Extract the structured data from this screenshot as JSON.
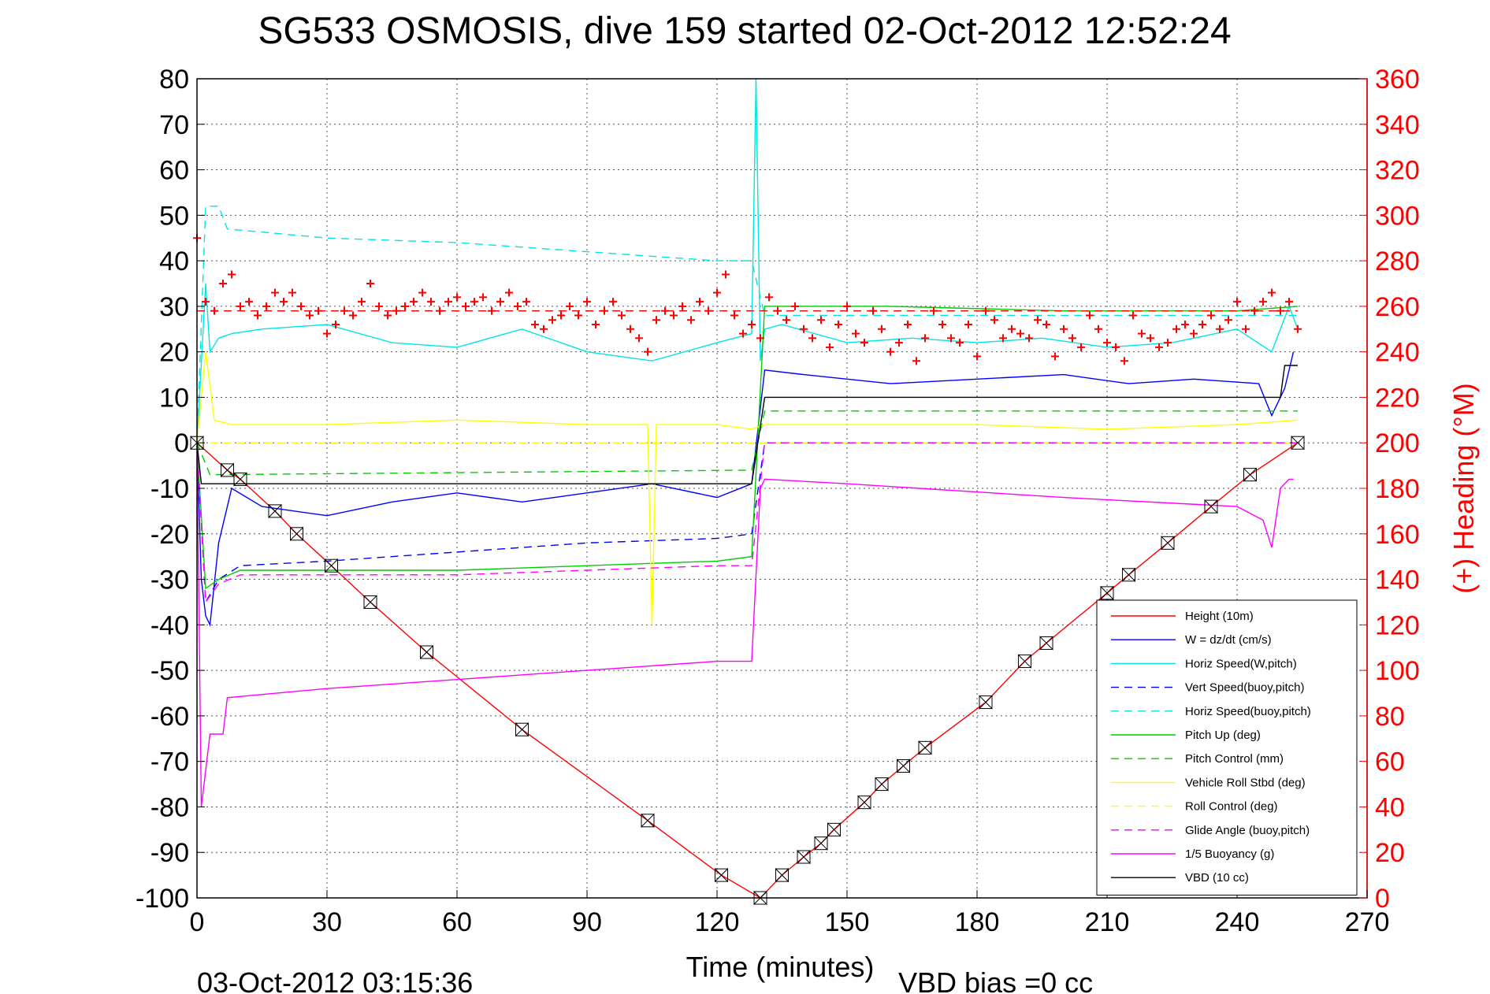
{
  "chart_data": {
    "type": "line",
    "title": "SG533 OSMOSIS, dive 159 started 02-Oct-2012 12:52:24",
    "xlabel": "Time (minutes)",
    "ylabel": "",
    "ylabel_right": "(+) Heading (°M)",
    "footer_date": "03-Oct-2012 03:15:36",
    "footer_bias": "VBD bias =0 cc",
    "xlim": [
      0,
      270
    ],
    "ylim": [
      -100,
      80
    ],
    "ylim_right": [
      0,
      360
    ],
    "x_ticks": [
      "0",
      "30",
      "60",
      "90",
      "120",
      "150",
      "180",
      "210",
      "240",
      "270"
    ],
    "y_ticks": [
      "80",
      "70",
      "60",
      "50",
      "40",
      "30",
      "20",
      "10",
      "0",
      "-10",
      "-20",
      "-30",
      "-40",
      "-50",
      "-60",
      "-70",
      "-80",
      "-90",
      "-100"
    ],
    "y_ticks_right": [
      "360",
      "340",
      "320",
      "300",
      "280",
      "260",
      "240",
      "220",
      "200",
      "180",
      "160",
      "140",
      "120",
      "100",
      "80",
      "60",
      "40",
      "20",
      "0"
    ],
    "grid": true,
    "legend_position": "bottom-right",
    "series": [
      {
        "name": "Height (10m)",
        "color": "#ff0000",
        "style": "solid",
        "x": [
          0,
          7,
          10,
          18,
          23,
          31,
          40,
          53,
          75,
          104,
          121,
          130,
          135,
          140,
          144,
          147,
          154,
          158,
          163,
          168,
          182,
          191,
          196,
          210,
          215,
          224,
          234,
          243,
          254
        ],
        "y": [
          0,
          -6,
          -8,
          -15,
          -20,
          -27,
          -35,
          -46,
          -63,
          -83,
          -95,
          -100,
          -95,
          -91,
          -88,
          -85,
          -79,
          -75,
          -71,
          -67,
          -57,
          -48,
          -44,
          -33,
          -29,
          -22,
          -14,
          -7,
          0
        ]
      },
      {
        "name": "W = dz/dt (cm/s)",
        "color": "#0000ff",
        "style": "solid",
        "x": [
          0,
          1,
          2,
          3,
          5,
          8,
          15,
          30,
          45,
          60,
          75,
          90,
          105,
          120,
          128,
          131,
          140,
          160,
          180,
          200,
          215,
          230,
          245,
          248,
          251,
          253
        ],
        "y": [
          0,
          -30,
          -38,
          -40,
          -22,
          -10,
          -14,
          -16,
          -13,
          -11,
          -13,
          -11,
          -9,
          -12,
          -9,
          16,
          15,
          13,
          14,
          15,
          13,
          14,
          13,
          6,
          12,
          20
        ]
      },
      {
        "name": "Horiz Speed(W,pitch)",
        "color": "#00e5e5",
        "style": "solid",
        "x": [
          0,
          2,
          3,
          5,
          8,
          15,
          30,
          45,
          60,
          75,
          90,
          105,
          120,
          128,
          129,
          130,
          131,
          135,
          150,
          165,
          180,
          195,
          210,
          225,
          240,
          248,
          252,
          254
        ],
        "y": [
          0,
          35,
          20,
          23,
          24,
          25,
          26,
          22,
          21,
          25,
          20,
          18,
          22,
          24,
          80,
          18,
          25,
          26,
          22,
          23,
          22,
          23,
          21,
          22,
          25,
          20,
          30,
          25
        ]
      },
      {
        "name": "Vert Speed(buoy,pitch)",
        "color": "#0000ff",
        "style": "dashed",
        "x": [
          0,
          2,
          5,
          10,
          30,
          60,
          90,
          120,
          128,
          131,
          254
        ],
        "y": [
          0,
          -35,
          -30,
          -27,
          -26,
          -24,
          -22,
          -21,
          -20,
          0,
          0
        ]
      },
      {
        "name": "Horiz Speed(buoy,pitch)",
        "color": "#00e5e5",
        "style": "dashed",
        "x": [
          0,
          2,
          5,
          7,
          30,
          60,
          90,
          120,
          128,
          131,
          254
        ],
        "y": [
          0,
          52,
          52,
          47,
          45,
          44,
          42,
          40,
          40,
          28,
          28
        ]
      },
      {
        "name": "Pitch Up (deg)",
        "color": "#00cc00",
        "style": "solid",
        "x": [
          0,
          2,
          5,
          10,
          30,
          60,
          90,
          120,
          128,
          131,
          160,
          200,
          240,
          254
        ],
        "y": [
          0,
          -32,
          -30,
          -28,
          -28,
          -28,
          -27,
          -26,
          -25,
          30,
          30,
          29,
          29,
          30
        ]
      },
      {
        "name": "Pitch Control (mm)",
        "color": "#00cc00",
        "style": "dashed",
        "x": [
          0,
          3,
          128,
          131,
          254
        ],
        "y": [
          0,
          -7,
          -6,
          7,
          7
        ]
      },
      {
        "name": "Vehicle Roll Stbd (deg)",
        "color": "#ffff00",
        "style": "solid",
        "x": [
          0,
          2,
          4,
          8,
          30,
          60,
          90,
          104,
          105,
          106,
          120,
          128,
          131,
          150,
          180,
          210,
          240,
          254
        ],
        "y": [
          0,
          20,
          5,
          4,
          4,
          5,
          4,
          4,
          -40,
          4,
          4,
          3,
          4,
          4,
          4,
          3,
          4,
          5
        ]
      },
      {
        "name": "Roll Control (deg)",
        "color": "#ffff00",
        "style": "dashed",
        "x": [
          0,
          254
        ],
        "y": [
          0,
          0
        ]
      },
      {
        "name": "Glide Angle (buoy,pitch)",
        "color": "#ff00ff",
        "style": "dashed",
        "x": [
          0,
          2,
          5,
          10,
          30,
          60,
          90,
          120,
          128,
          131,
          254
        ],
        "y": [
          0,
          -35,
          -31,
          -29,
          -29,
          -29,
          -28,
          -27,
          -27,
          0,
          0
        ]
      },
      {
        "name": "1/5 Buoyancy (g)",
        "color": "#ff00ff",
        "style": "solid",
        "x": [
          0,
          1,
          3,
          6,
          7,
          30,
          60,
          90,
          120,
          128,
          130,
          131,
          150,
          200,
          240,
          246,
          248,
          250,
          252,
          253
        ],
        "y": [
          0,
          -80,
          -64,
          -64,
          -56,
          -54,
          -52,
          -50,
          -48,
          -48,
          -10,
          -8,
          -9,
          -12,
          -14,
          -17,
          -23,
          -10,
          -8,
          -8
        ]
      },
      {
        "name": "VBD (10 cc)",
        "color": "#000000",
        "style": "solid",
        "x": [
          0,
          1,
          3,
          128,
          131,
          250,
          251,
          254
        ],
        "y": [
          0,
          -9,
          -9,
          -9,
          10,
          10,
          17,
          17
        ]
      }
    ],
    "heading_points": {
      "color": "#ff0000",
      "x": [
        0,
        2,
        4,
        6,
        8,
        10,
        12,
        14,
        16,
        18,
        20,
        22,
        24,
        26,
        28,
        30,
        32,
        34,
        36,
        38,
        40,
        42,
        44,
        46,
        48,
        50,
        52,
        54,
        56,
        58,
        60,
        62,
        64,
        66,
        68,
        70,
        72,
        74,
        76,
        78,
        80,
        82,
        84,
        86,
        88,
        90,
        92,
        94,
        96,
        98,
        100,
        102,
        104,
        106,
        108,
        110,
        112,
        114,
        116,
        118,
        120,
        122,
        124,
        126,
        128,
        130,
        132,
        134,
        136,
        138,
        140,
        142,
        144,
        146,
        148,
        150,
        152,
        154,
        156,
        158,
        160,
        162,
        164,
        166,
        168,
        170,
        172,
        174,
        176,
        178,
        180,
        182,
        184,
        186,
        188,
        190,
        192,
        194,
        196,
        198,
        200,
        202,
        204,
        206,
        208,
        210,
        212,
        214,
        216,
        218,
        220,
        222,
        224,
        226,
        228,
        230,
        232,
        234,
        236,
        238,
        240,
        242,
        244,
        246,
        248,
        250,
        252,
        254
      ],
      "y": [
        290,
        262,
        258,
        270,
        274,
        260,
        262,
        256,
        260,
        266,
        262,
        266,
        260,
        256,
        258,
        248,
        252,
        258,
        256,
        262,
        270,
        260,
        256,
        258,
        260,
        262,
        266,
        262,
        258,
        262,
        264,
        260,
        262,
        264,
        258,
        262,
        266,
        260,
        262,
        252,
        250,
        254,
        256,
        260,
        256,
        262,
        252,
        258,
        262,
        256,
        250,
        246,
        240,
        254,
        258,
        256,
        260,
        254,
        262,
        258,
        266,
        274,
        256,
        248,
        252,
        246,
        264,
        258,
        254,
        260,
        250,
        246,
        254,
        242,
        252,
        260,
        248,
        244,
        258,
        250,
        240,
        244,
        252,
        236,
        246,
        258,
        252,
        246,
        244,
        252,
        238,
        258,
        254,
        246,
        250,
        248,
        246,
        254,
        252,
        238,
        250,
        246,
        242,
        256,
        250,
        244,
        242,
        236,
        256,
        248,
        246,
        242,
        244,
        250,
        252,
        248,
        252,
        256,
        250,
        254,
        262,
        250,
        258,
        262,
        266,
        258,
        262,
        250
      ]
    },
    "heading_mean": {
      "color": "#ff0000",
      "style": "dashed",
      "value": 258
    },
    "marker_points": {
      "x": [
        0,
        7,
        10,
        18,
        23,
        31,
        40,
        53,
        75,
        104,
        121,
        130,
        135,
        140,
        144,
        147,
        154,
        158,
        163,
        168,
        182,
        191,
        196,
        210,
        215,
        224,
        234,
        243,
        254
      ]
    }
  }
}
